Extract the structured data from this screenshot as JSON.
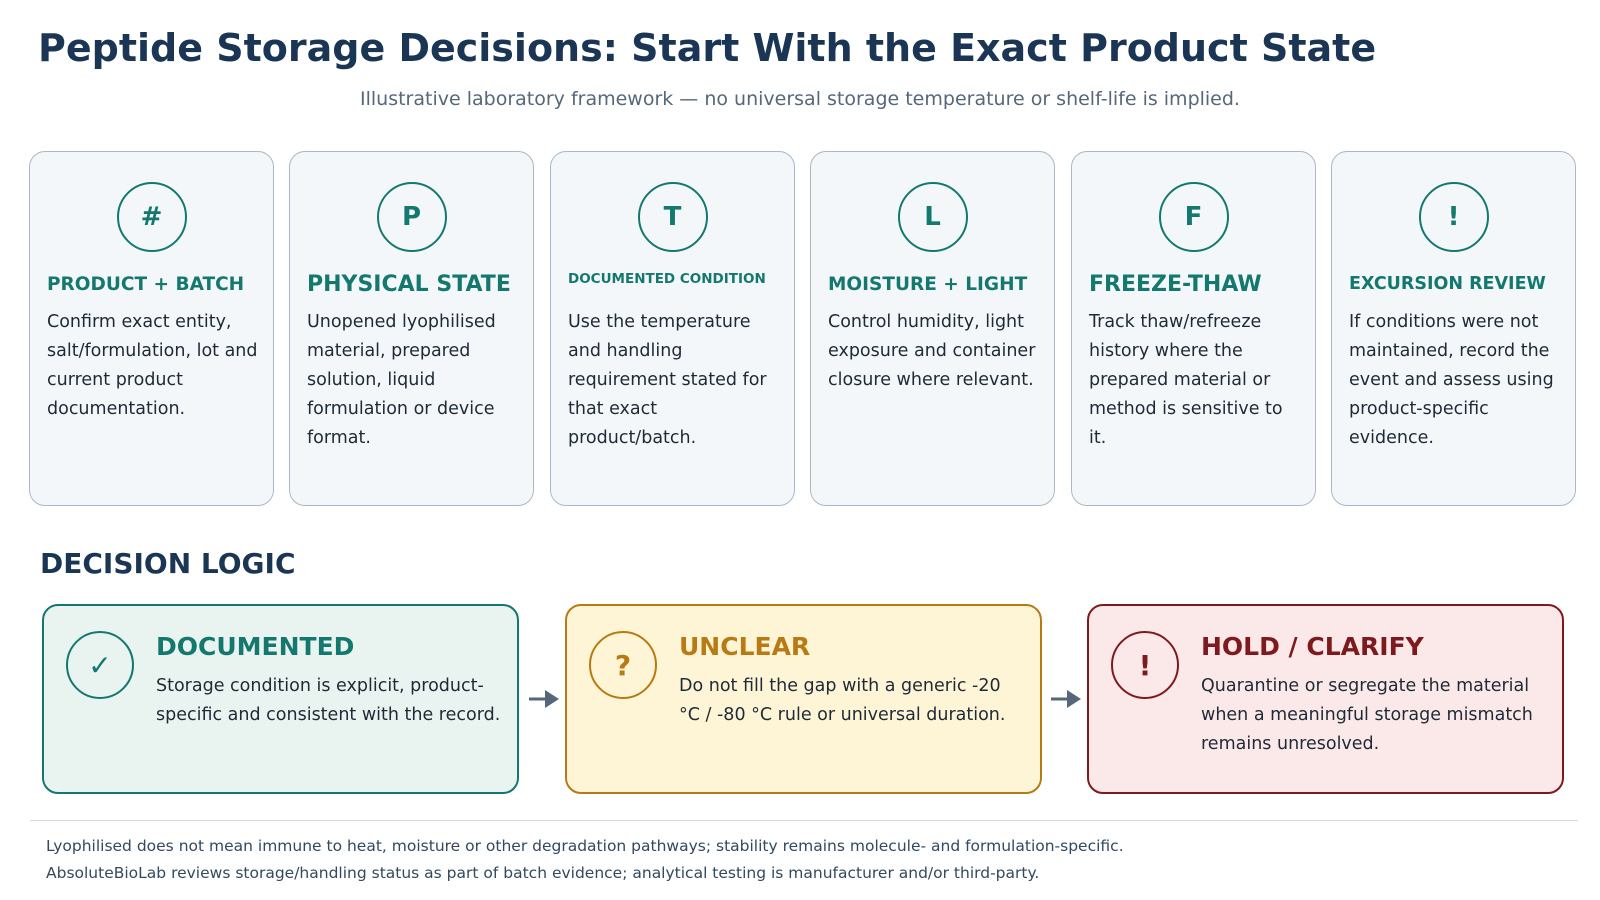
{
  "header": {
    "title": "Peptide Storage Decisions: Start With the Exact Product State",
    "subtitle": "Illustrative laboratory framework — no universal storage temperature or shelf-life is implied."
  },
  "cards": [
    {
      "icon_glyph": "#",
      "icon_name": "hash-icon",
      "title": "PRODUCT + BATCH",
      "body": "Confirm exact entity, salt/formulation, lot and current product documentation."
    },
    {
      "icon_glyph": "P",
      "icon_name": "letter-p-icon",
      "title": "PHYSICAL STATE",
      "body": "Unopened lyophilised material, prepared solution, liquid formulation or device format."
    },
    {
      "icon_glyph": "T",
      "icon_name": "letter-t-icon",
      "title": "DOCUMENTED CONDITION",
      "body": "Use the temperature and handling requirement stated for that exact product/batch."
    },
    {
      "icon_glyph": "L",
      "icon_name": "letter-l-icon",
      "title": "MOISTURE + LIGHT",
      "body": "Control humidity, light exposure and container closure where relevant."
    },
    {
      "icon_glyph": "F",
      "icon_name": "letter-f-icon",
      "title": "FREEZE-THAW",
      "body": "Track thaw/refreeze history where the prepared material or method is sensitive to it."
    },
    {
      "icon_glyph": "!",
      "icon_name": "exclamation-icon",
      "title": "EXCURSION REVIEW",
      "body": "If conditions were not maintained, record the event and assess using product-specific evidence."
    }
  ],
  "decision": {
    "heading": "DECISION LOGIC",
    "boxes": [
      {
        "icon_glyph": "✓",
        "icon_name": "checkmark-icon",
        "title": "DOCUMENTED",
        "body": "Storage condition is explicit, product-specific and consistent with the record.",
        "color": "#14786e"
      },
      {
        "icon_glyph": "?",
        "icon_name": "question-mark-icon",
        "title": "UNCLEAR",
        "body": "Do not fill the gap with a generic -20 °C / -80 °C rule or universal duration.",
        "color": "#b87a12"
      },
      {
        "icon_glyph": "!",
        "icon_name": "exclamation-icon",
        "title": "HOLD / CLARIFY",
        "body": "Quarantine or segregate the material when a meaningful storage mismatch remains unresolved.",
        "color": "#7e1a1e"
      }
    ]
  },
  "footer": {
    "line1": "Lyophilised does not mean immune to heat, moisture or other degradation pathways; stability remains molecule- and formulation-specific.",
    "line2": "AbsoluteBioLab reviews storage/handling status as part of batch evidence; analytical testing is manufacturer and/or third-party."
  },
  "colors": {
    "title": "#1b3654",
    "accent_teal": "#14786e",
    "card_border": "#aab8c6",
    "arrow": "#56677a"
  }
}
